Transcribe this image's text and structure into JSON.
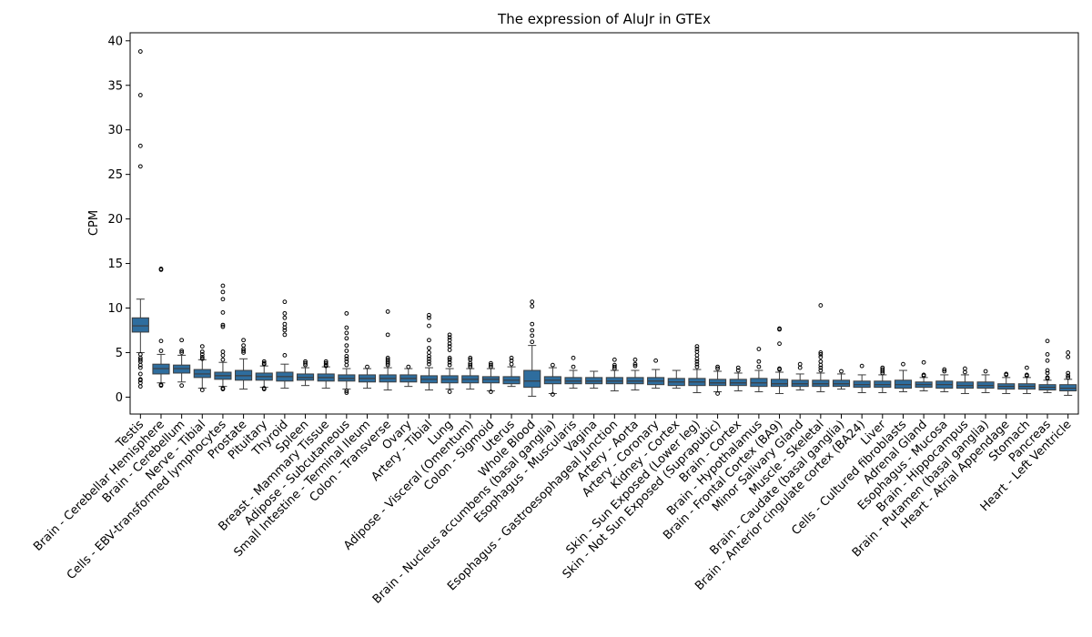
{
  "chart_data": {
    "type": "boxplot",
    "title": "The expression of AluJr in GTEx",
    "xlabel": "",
    "ylabel": "CPM",
    "ylim": [
      -1.9,
      40.9
    ],
    "yticks": [
      0,
      5,
      10,
      15,
      20,
      25,
      30,
      35,
      40
    ],
    "grid": false,
    "color": "#2e6d9e",
    "categories": [
      "Testis",
      "Brain - Cerebellar Hemisphere",
      "Brain - Cerebellum",
      "Nerve - Tibial",
      "Cells - EBV-transformed lymphocytes",
      "Prostate",
      "Pituitary",
      "Thyroid",
      "Spleen",
      "Breast - Mammary Tissue",
      "Adipose - Subcutaneous",
      "Small Intestine - Terminal Ileum",
      "Colon - Transverse",
      "Ovary",
      "Artery - Tibial",
      "Lung",
      "Adipose - Visceral (Omentum)",
      "Colon - Sigmoid",
      "Uterus",
      "Whole Blood",
      "Brain - Nucleus accumbens (basal ganglia)",
      "Esophagus - Muscularis",
      "Vagina",
      "Esophagus - Gastroesophageal Junction",
      "Artery - Aorta",
      "Artery - Coronary",
      "Kidney - Cortex",
      "Skin - Sun Exposed (Lower leg)",
      "Skin - Not Sun Exposed (Suprapubic)",
      "Brain - Cortex",
      "Brain - Hypothalamus",
      "Brain - Frontal Cortex (BA9)",
      "Minor Salivary Gland",
      "Muscle - Skeletal",
      "Brain - Caudate (basal ganglia)",
      "Brain - Anterior cingulate cortex (BA24)",
      "Liver",
      "Cells - Cultured fibroblasts",
      "Adrenal Gland",
      "Esophagus - Mucosa",
      "Brain - Hippocampus",
      "Brain - Putamen (basal ganglia)",
      "Heart - Atrial Appendage",
      "Stomach",
      "Pancreas",
      "Heart - Left Ventricle"
    ],
    "boxes": [
      {
        "whislo": 5.0,
        "q1": 7.3,
        "med": 8.0,
        "q3": 8.9,
        "whishi": 11.0,
        "fliers": [
          38.8,
          33.9,
          28.2,
          25.9,
          4.8,
          4.4,
          4.2,
          4.0,
          3.6,
          3.3,
          2.6,
          2.0,
          1.9,
          1.6,
          1.2
        ]
      },
      {
        "whislo": 1.6,
        "q1": 2.6,
        "med": 3.2,
        "q3": 3.7,
        "whishi": 4.8,
        "fliers": [
          14.4,
          14.3,
          6.3,
          5.2,
          1.4,
          1.3
        ]
      },
      {
        "whislo": 1.7,
        "q1": 2.7,
        "med": 3.2,
        "q3": 3.6,
        "whishi": 4.7,
        "fliers": [
          6.4,
          5.2,
          5.0,
          1.3
        ]
      },
      {
        "whislo": 1.0,
        "q1": 2.2,
        "med": 2.6,
        "q3": 3.1,
        "whishi": 4.2,
        "fliers": [
          5.7,
          5.1,
          4.8,
          4.5,
          4.3,
          0.8
        ]
      },
      {
        "whislo": 1.2,
        "q1": 2.0,
        "med": 2.4,
        "q3": 2.8,
        "whishi": 3.9,
        "fliers": [
          12.5,
          11.8,
          11.0,
          9.5,
          8.1,
          7.9,
          5.1,
          4.7,
          4.2,
          1.0,
          0.9
        ]
      },
      {
        "whislo": 0.9,
        "q1": 1.9,
        "med": 2.4,
        "q3": 3.0,
        "whishi": 4.3,
        "fliers": [
          6.4,
          5.8,
          5.4,
          5.2,
          5.0
        ]
      },
      {
        "whislo": 1.1,
        "q1": 1.9,
        "med": 2.3,
        "q3": 2.7,
        "whishi": 3.5,
        "fliers": [
          4.0,
          3.8,
          3.7,
          1.0,
          0.9
        ]
      },
      {
        "whislo": 1.0,
        "q1": 1.8,
        "med": 2.3,
        "q3": 2.8,
        "whishi": 3.7,
        "fliers": [
          10.7,
          9.4,
          8.9,
          8.2,
          7.8,
          7.5,
          7.0,
          4.7
        ]
      },
      {
        "whislo": 1.3,
        "q1": 1.9,
        "med": 2.2,
        "q3": 2.6,
        "whishi": 3.3,
        "fliers": [
          4.0,
          3.8,
          3.6
        ]
      },
      {
        "whislo": 1.0,
        "q1": 1.8,
        "med": 2.2,
        "q3": 2.6,
        "whishi": 3.4,
        "fliers": [
          4.0,
          3.8,
          3.6,
          3.5
        ]
      },
      {
        "whislo": 0.9,
        "q1": 1.8,
        "med": 2.1,
        "q3": 2.5,
        "whishi": 3.2,
        "fliers": [
          9.4,
          7.8,
          7.2,
          6.6,
          5.8,
          5.2,
          4.6,
          4.3,
          4.0,
          3.6,
          0.7,
          0.5
        ]
      },
      {
        "whislo": 1.0,
        "q1": 1.7,
        "med": 2.1,
        "q3": 2.5,
        "whishi": 3.2,
        "fliers": [
          3.4
        ]
      },
      {
        "whislo": 0.8,
        "q1": 1.7,
        "med": 2.1,
        "q3": 2.5,
        "whishi": 3.3,
        "fliers": [
          9.6,
          7.0,
          4.4,
          4.2,
          4.0,
          3.8,
          3.6
        ]
      },
      {
        "whislo": 1.2,
        "q1": 1.7,
        "med": 2.1,
        "q3": 2.5,
        "whishi": 3.2,
        "fliers": [
          3.4
        ]
      },
      {
        "whislo": 0.8,
        "q1": 1.6,
        "med": 2.0,
        "q3": 2.4,
        "whishi": 3.3,
        "fliers": [
          9.2,
          8.9,
          8.0,
          6.4,
          5.5,
          5.0,
          4.6,
          4.3,
          4.0,
          3.7
        ]
      },
      {
        "whislo": 0.9,
        "q1": 1.6,
        "med": 2.0,
        "q3": 2.4,
        "whishi": 3.2,
        "fliers": [
          7.0,
          6.7,
          6.4,
          6.0,
          5.7,
          5.3,
          4.4,
          4.2,
          3.9,
          3.6,
          0.6
        ]
      },
      {
        "whislo": 0.9,
        "q1": 1.6,
        "med": 2.0,
        "q3": 2.4,
        "whishi": 3.2,
        "fliers": [
          4.4,
          4.2,
          3.8,
          3.6,
          3.4
        ]
      },
      {
        "whislo": 0.7,
        "q1": 1.6,
        "med": 2.0,
        "q3": 2.3,
        "whishi": 3.2,
        "fliers": [
          3.8,
          3.6,
          3.4,
          0.6
        ]
      },
      {
        "whislo": 1.2,
        "q1": 1.5,
        "med": 1.9,
        "q3": 2.3,
        "whishi": 3.4,
        "fliers": [
          4.4,
          4.1,
          3.7
        ]
      },
      {
        "whislo": 0.1,
        "q1": 1.1,
        "med": 1.8,
        "q3": 3.0,
        "whishi": 5.8,
        "fliers": [
          10.7,
          10.2,
          8.2,
          7.5,
          6.9,
          6.2
        ]
      },
      {
        "whislo": 0.4,
        "q1": 1.5,
        "med": 1.9,
        "q3": 2.3,
        "whishi": 3.3,
        "fliers": [
          3.6,
          0.3
        ]
      },
      {
        "whislo": 1.0,
        "q1": 1.5,
        "med": 1.8,
        "q3": 2.2,
        "whishi": 3.0,
        "fliers": [
          4.4,
          3.4
        ]
      },
      {
        "whislo": 1.0,
        "q1": 1.5,
        "med": 1.8,
        "q3": 2.2,
        "whishi": 2.9,
        "fliers": []
      },
      {
        "whislo": 0.7,
        "q1": 1.5,
        "med": 1.8,
        "q3": 2.2,
        "whishi": 3.0,
        "fliers": [
          4.2,
          3.6,
          3.4,
          3.2
        ]
      },
      {
        "whislo": 0.8,
        "q1": 1.5,
        "med": 1.8,
        "q3": 2.2,
        "whishi": 3.0,
        "fliers": [
          4.2,
          3.7,
          3.5
        ]
      },
      {
        "whislo": 1.0,
        "q1": 1.4,
        "med": 1.8,
        "q3": 2.2,
        "whishi": 3.1,
        "fliers": [
          4.1
        ]
      },
      {
        "whislo": 1.0,
        "q1": 1.3,
        "med": 1.7,
        "q3": 2.1,
        "whishi": 3.0,
        "fliers": []
      },
      {
        "whislo": 0.5,
        "q1": 1.3,
        "med": 1.7,
        "q3": 2.1,
        "whishi": 3.1,
        "fliers": [
          5.7,
          5.4,
          5.1,
          4.7,
          4.3,
          4.0,
          3.7,
          3.4
        ]
      },
      {
        "whislo": 0.6,
        "q1": 1.3,
        "med": 1.6,
        "q3": 2.0,
        "whishi": 2.9,
        "fliers": [
          3.4,
          3.2,
          0.4
        ]
      },
      {
        "whislo": 0.7,
        "q1": 1.3,
        "med": 1.6,
        "q3": 2.0,
        "whishi": 2.7,
        "fliers": [
          3.3,
          3.0
        ]
      },
      {
        "whislo": 0.6,
        "q1": 1.2,
        "med": 1.6,
        "q3": 2.1,
        "whishi": 3.0,
        "fliers": [
          5.4,
          4.0,
          3.4
        ]
      },
      {
        "whislo": 0.4,
        "q1": 1.2,
        "med": 1.5,
        "q3": 2.0,
        "whishi": 2.8,
        "fliers": [
          7.7,
          7.6,
          6.0,
          3.2,
          3.1
        ]
      },
      {
        "whislo": 0.8,
        "q1": 1.2,
        "med": 1.5,
        "q3": 1.9,
        "whishi": 2.6,
        "fliers": [
          3.7,
          3.3
        ]
      },
      {
        "whislo": 0.6,
        "q1": 1.2,
        "med": 1.5,
        "q3": 1.9,
        "whishi": 2.7,
        "fliers": [
          10.3,
          5.0,
          4.8,
          4.5,
          4.0,
          3.6,
          3.3,
          3.0
        ]
      },
      {
        "whislo": 0.9,
        "q1": 1.2,
        "med": 1.5,
        "q3": 1.9,
        "whishi": 2.6,
        "fliers": [
          2.9
        ]
      },
      {
        "whislo": 0.5,
        "q1": 1.1,
        "med": 1.4,
        "q3": 1.8,
        "whishi": 2.5,
        "fliers": [
          3.5
        ]
      },
      {
        "whislo": 0.5,
        "q1": 1.1,
        "med": 1.4,
        "q3": 1.8,
        "whishi": 2.5,
        "fliers": [
          3.3,
          3.1,
          2.9,
          2.7
        ]
      },
      {
        "whislo": 0.6,
        "q1": 1.0,
        "med": 1.4,
        "q3": 1.9,
        "whishi": 3.0,
        "fliers": [
          3.7
        ]
      },
      {
        "whislo": 0.7,
        "q1": 1.1,
        "med": 1.4,
        "q3": 1.7,
        "whishi": 2.2,
        "fliers": [
          3.9,
          2.5,
          2.4
        ]
      },
      {
        "whislo": 0.6,
        "q1": 1.0,
        "med": 1.4,
        "q3": 1.8,
        "whishi": 2.5,
        "fliers": [
          3.1,
          2.9
        ]
      },
      {
        "whislo": 0.4,
        "q1": 1.0,
        "med": 1.3,
        "q3": 1.7,
        "whishi": 2.5,
        "fliers": [
          3.2,
          2.8
        ]
      },
      {
        "whislo": 0.5,
        "q1": 1.0,
        "med": 1.3,
        "q3": 1.7,
        "whishi": 2.5,
        "fliers": [
          2.9
        ]
      },
      {
        "whislo": 0.4,
        "q1": 0.9,
        "med": 1.2,
        "q3": 1.5,
        "whishi": 2.2,
        "fliers": [
          2.6,
          2.5
        ]
      },
      {
        "whislo": 0.4,
        "q1": 0.9,
        "med": 1.2,
        "q3": 1.5,
        "whishi": 2.2,
        "fliers": [
          3.3,
          2.5,
          2.4
        ]
      },
      {
        "whislo": 0.5,
        "q1": 0.8,
        "med": 1.1,
        "q3": 1.4,
        "whishi": 1.9,
        "fliers": [
          6.3,
          4.8,
          4.1,
          3.0,
          2.7,
          2.2,
          2.1
        ]
      },
      {
        "whislo": 0.2,
        "q1": 0.7,
        "med": 1.0,
        "q3": 1.4,
        "whishi": 2.0,
        "fliers": [
          5.0,
          4.5,
          2.7,
          2.4,
          2.2
        ]
      }
    ]
  }
}
